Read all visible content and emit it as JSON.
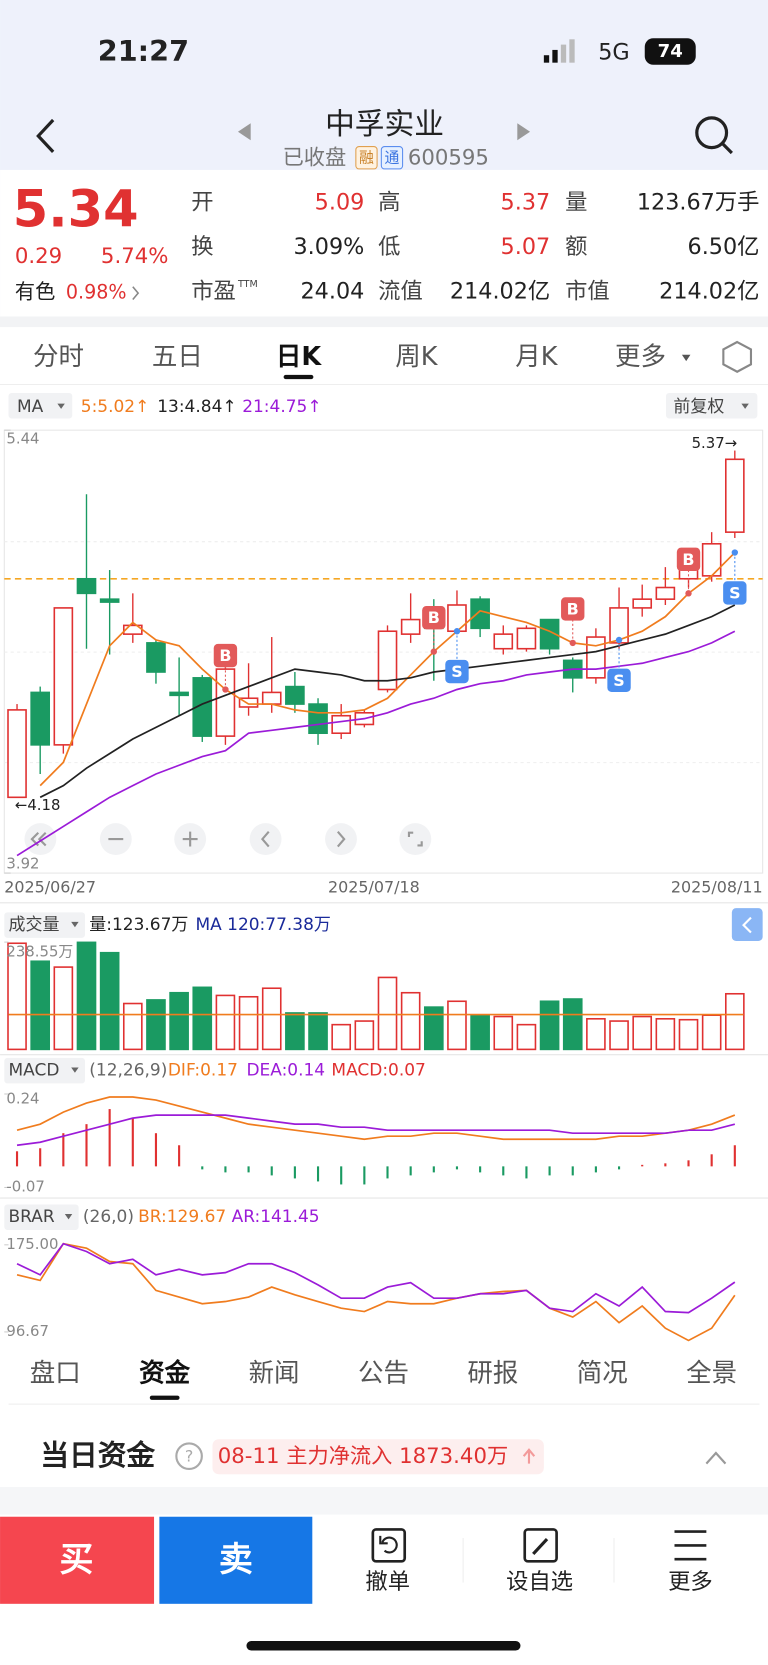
{
  "status_bar": {
    "time": "21:27",
    "network": "5G",
    "battery": "74"
  },
  "header": {
    "title": "中孚实业",
    "status": "已收盘",
    "badges": [
      "融",
      "通"
    ],
    "code": "600595"
  },
  "quote": {
    "price": "5.34",
    "change": "0.29",
    "change_pct": "5.74%",
    "sector": "有色",
    "sector_pct": "0.98%",
    "up_color": "#e03131",
    "fields": [
      {
        "label": "开",
        "value": "5.09",
        "up": true
      },
      {
        "label": "高",
        "value": "5.37",
        "up": true
      },
      {
        "label": "量",
        "value": "123.67万手"
      },
      {
        "label": "换",
        "value": "3.09%"
      },
      {
        "label": "低",
        "value": "5.07",
        "up": true
      },
      {
        "label": "额",
        "value": "6.50亿"
      },
      {
        "label": "市盈",
        "sup": "TTM",
        "value": "24.04"
      },
      {
        "label": "流值",
        "value": "214.02亿"
      },
      {
        "label": "市值",
        "value": "214.02亿"
      }
    ]
  },
  "tabs": {
    "items": [
      "分时",
      "五日",
      "日K",
      "周K",
      "月K",
      "更多"
    ],
    "active": 2
  },
  "ma_legend": {
    "label": "MA",
    "items": [
      {
        "text": "5:5.02↑",
        "color": "#f07c1e"
      },
      {
        "text": "13:4.84↑",
        "color": "#222222"
      },
      {
        "text": "21:4.75↑",
        "color": "#9b1bd8"
      }
    ],
    "adjust": "前复权"
  },
  "kline": {
    "type": "candlestick",
    "up_color": "#e03131",
    "down_color": "#1a9a62",
    "categories": [
      "2025/06/27",
      null,
      null,
      null,
      null,
      null,
      null,
      null,
      null,
      null,
      null,
      null,
      null,
      null,
      null,
      "2025/07/18",
      null,
      null,
      null,
      null,
      null,
      null,
      null,
      null,
      null,
      null,
      null,
      null,
      null,
      null,
      null,
      "2025/08/11"
    ],
    "open": [
      4.18,
      4.54,
      4.36,
      4.93,
      4.86,
      4.74,
      4.71,
      4.54,
      4.59,
      4.39,
      4.49,
      4.5,
      4.56,
      4.5,
      4.4,
      4.43,
      4.55,
      4.74,
      4.79,
      4.75,
      4.86,
      4.69,
      4.69,
      4.79,
      4.65,
      4.59,
      4.71,
      4.83,
      4.86,
      4.93,
      4.94,
      5.09
    ],
    "high": [
      4.5,
      4.56,
      4.83,
      5.22,
      4.96,
      4.88,
      4.72,
      4.66,
      4.6,
      4.63,
      4.64,
      4.73,
      4.61,
      4.52,
      4.5,
      4.48,
      4.77,
      4.88,
      4.86,
      4.89,
      4.87,
      4.77,
      4.77,
      4.79,
      4.66,
      4.76,
      4.9,
      4.91,
      4.97,
      5.0,
      5.09,
      5.37
    ],
    "low": [
      4.18,
      4.26,
      4.33,
      4.69,
      4.67,
      4.71,
      4.57,
      4.46,
      4.37,
      4.36,
      4.46,
      4.47,
      4.47,
      4.36,
      4.38,
      4.42,
      4.54,
      4.71,
      4.58,
      4.74,
      4.73,
      4.67,
      4.68,
      4.67,
      4.54,
      4.57,
      4.69,
      4.8,
      4.84,
      4.9,
      4.92,
      5.07
    ],
    "close": [
      4.48,
      4.36,
      4.83,
      4.88,
      4.85,
      4.77,
      4.61,
      4.53,
      4.39,
      4.62,
      4.52,
      4.54,
      4.5,
      4.4,
      4.46,
      4.47,
      4.75,
      4.79,
      4.76,
      4.84,
      4.76,
      4.74,
      4.76,
      4.69,
      4.59,
      4.73,
      4.83,
      4.86,
      4.9,
      4.97,
      5.05,
      5.34
    ],
    "series": [
      {
        "color": "#f07c1e",
        "values": [
          null,
          4.22,
          4.3,
          4.5,
          4.7,
          4.78,
          4.72,
          4.7,
          4.62,
          4.55,
          4.5,
          4.5,
          4.48,
          4.47,
          4.47,
          4.48,
          4.52,
          4.6,
          4.68,
          4.75,
          4.82,
          4.8,
          4.78,
          4.75,
          4.71,
          4.7,
          4.72,
          4.75,
          4.8,
          4.88,
          4.94,
          5.02
        ]
      },
      {
        "color": "#222222",
        "values": [
          null,
          4.18,
          4.22,
          4.28,
          4.33,
          4.38,
          4.42,
          4.46,
          4.5,
          4.53,
          4.56,
          4.59,
          4.62,
          4.61,
          4.6,
          4.58,
          4.58,
          4.59,
          4.61,
          4.62,
          4.63,
          4.64,
          4.65,
          4.66,
          4.67,
          4.68,
          4.7,
          4.72,
          4.74,
          4.77,
          4.8,
          4.84
        ]
      },
      {
        "color": "#9b1bd8",
        "values": [
          3.98,
          4.03,
          4.08,
          4.13,
          4.18,
          4.22,
          4.26,
          4.29,
          4.32,
          4.34,
          4.4,
          4.41,
          4.42,
          4.43,
          4.44,
          4.45,
          4.47,
          4.5,
          4.52,
          4.55,
          4.57,
          4.58,
          4.6,
          4.61,
          4.62,
          4.62,
          4.63,
          4.64,
          4.66,
          4.68,
          4.71,
          4.75
        ]
      }
    ],
    "signals": [
      null,
      null,
      null,
      null,
      null,
      null,
      null,
      null,
      null,
      "B",
      null,
      null,
      null,
      null,
      null,
      null,
      null,
      null,
      "B",
      "S",
      null,
      null,
      null,
      null,
      "B",
      null,
      "S",
      null,
      null,
      "B",
      null,
      "S"
    ],
    "ref_line": 4.93,
    "high_label": "5.37→",
    "low_label": "←4.18",
    "ylim": [
      3.92,
      5.44
    ],
    "yticks": [
      5.44,
      3.92
    ]
  },
  "volume": {
    "type": "bar",
    "label": "成交量",
    "current": "量:123.67万",
    "ma_text": "MA 120:77.38万",
    "ma_value": 77.38,
    "ma_color": "#f07c1e",
    "values": [
      236,
      196,
      183,
      238,
      215,
      102,
      110,
      126,
      138,
      120,
      117,
      136,
      81,
      81,
      55,
      63,
      160,
      126,
      94,
      107,
      76,
      73,
      55,
      107,
      112,
      68,
      63,
      73,
      68,
      66,
      76,
      123.67
    ],
    "ylim": [
      0,
      238.55
    ],
    "yticks": [
      {
        "value": 238.55,
        "label": "238.55万"
      }
    ]
  },
  "macd": {
    "type": "macd",
    "label": "MACD",
    "params": "(12,26,9)",
    "legend": [
      {
        "text": "DIF:0.17",
        "color": "#f07c1e"
      },
      {
        "text": "DEA:0.14",
        "color": "#9b1bd8"
      },
      {
        "text": "MACD:0.07",
        "color": "#e03131"
      }
    ],
    "hist": [
      0.05,
      0.06,
      0.11,
      0.14,
      0.19,
      0.16,
      0.11,
      0.07,
      -0.01,
      -0.02,
      -0.02,
      -0.03,
      -0.04,
      -0.05,
      -0.06,
      -0.06,
      -0.04,
      -0.03,
      -0.02,
      -0.01,
      -0.02,
      -0.03,
      -0.04,
      -0.03,
      -0.03,
      -0.02,
      -0.01,
      0.005,
      0.01,
      0.02,
      0.04,
      0.07
    ],
    "series": [
      {
        "color": "#f07c1e",
        "values": [
          0.12,
          0.14,
          0.18,
          0.21,
          0.23,
          0.23,
          0.22,
          0.2,
          0.18,
          0.16,
          0.14,
          0.13,
          0.12,
          0.11,
          0.1,
          0.09,
          0.1,
          0.1,
          0.11,
          0.11,
          0.1,
          0.09,
          0.09,
          0.09,
          0.09,
          0.09,
          0.1,
          0.1,
          0.11,
          0.12,
          0.14,
          0.17
        ]
      },
      {
        "color": "#9b1bd8",
        "values": [
          0.07,
          0.08,
          0.1,
          0.12,
          0.14,
          0.16,
          0.17,
          0.17,
          0.17,
          0.17,
          0.16,
          0.15,
          0.14,
          0.14,
          0.13,
          0.13,
          0.12,
          0.12,
          0.12,
          0.12,
          0.12,
          0.12,
          0.12,
          0.12,
          0.11,
          0.11,
          0.11,
          0.11,
          0.11,
          0.12,
          0.12,
          0.14
        ]
      }
    ],
    "ylim": [
      -0.07,
      0.24
    ],
    "yticks": [
      0.24,
      -0.07
    ]
  },
  "brar": {
    "type": "line",
    "label": "BRAR",
    "params": "(26,0)",
    "legend": [
      {
        "text": "BR:129.67",
        "color": "#f07c1e"
      },
      {
        "text": "AR:141.45",
        "color": "#9b1bd8"
      }
    ],
    "series": [
      {
        "color": "#f07c1e",
        "values": [
          148,
          143,
          176,
          172,
          160,
          158,
          134,
          128,
          122,
          124,
          128,
          137,
          130,
          124,
          118,
          115,
          124,
          122,
          122,
          127,
          131,
          133,
          134,
          118,
          110,
          124,
          105,
          120,
          100,
          89,
          100,
          129.67
        ]
      },
      {
        "color": "#9b1bd8",
        "values": [
          158,
          148,
          176,
          169,
          158,
          162,
          148,
          153,
          148,
          150,
          158,
          158,
          150,
          139,
          127,
          127,
          137,
          141,
          127,
          127,
          131,
          131,
          134,
          118,
          115,
          131,
          120,
          137,
          115,
          114,
          127,
          141.45
        ]
      }
    ],
    "ylim": [
      96.67,
      175
    ],
    "yticks": [
      {
        "value": 175,
        "label": "175.00"
      },
      96.67
    ]
  },
  "sub_tabs": {
    "items": [
      "盘口",
      "资金",
      "新闻",
      "公告",
      "研报",
      "简况",
      "全景"
    ],
    "active": 1
  },
  "fund": {
    "title": "当日资金",
    "summary": "08-11 主力净流入 1873.40万"
  },
  "bottom_bar": {
    "buy": "买",
    "sell": "卖",
    "actions": [
      "撤单",
      "设自选",
      "更多"
    ]
  }
}
